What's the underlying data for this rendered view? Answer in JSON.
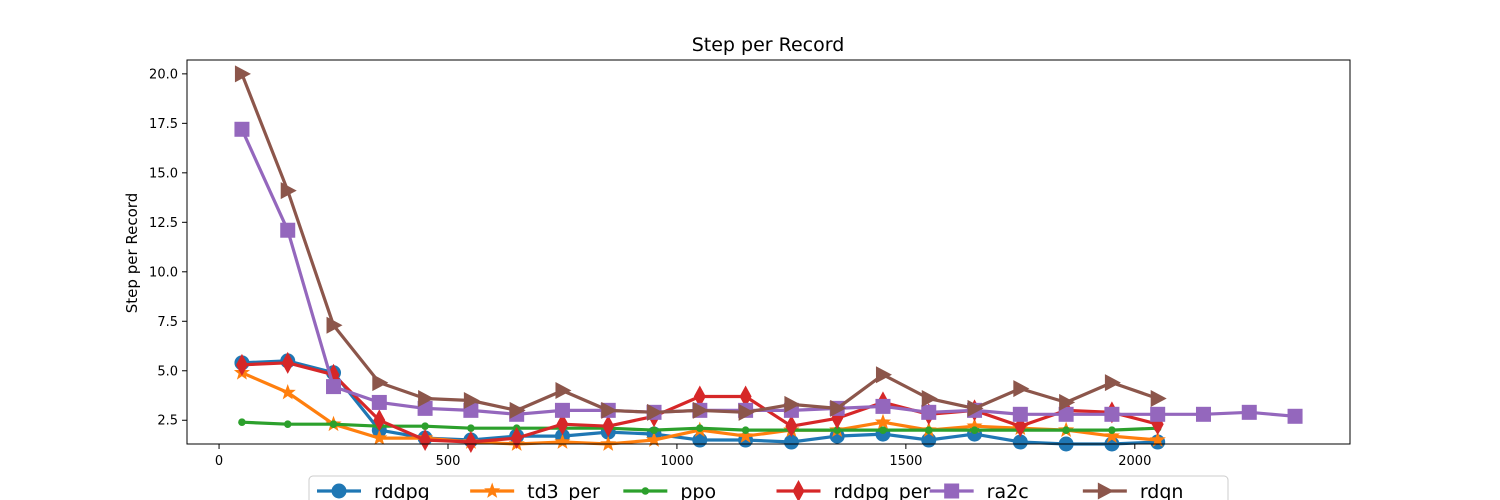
{
  "chart_data": {
    "type": "line",
    "title": "Step per Record",
    "xlabel": "",
    "ylabel": "Step per Record",
    "xlim": [
      -70,
      2470
    ],
    "ylim": [
      1.3,
      20.7
    ],
    "xticks": [
      0,
      500,
      1000,
      1500,
      2000
    ],
    "yticks": [
      2.5,
      5.0,
      7.5,
      10.0,
      12.5,
      15.0,
      17.5,
      20.0
    ],
    "ytick_labels": [
      "2.5",
      "5.0",
      "7.5",
      "10.0",
      "12.5",
      "15.0",
      "17.5",
      "20.0"
    ],
    "grid": false,
    "legend_position": "bottom-center",
    "series": [
      {
        "name": "rddpg",
        "color": "#1f77b4",
        "marker": "circle",
        "x": [
          50,
          150,
          250,
          350,
          450,
          550,
          650,
          750,
          850,
          950,
          1050,
          1150,
          1250,
          1350,
          1450,
          1550,
          1650,
          1750,
          1850,
          1950,
          2050
        ],
        "y": [
          5.4,
          5.5,
          4.9,
          2.0,
          1.6,
          1.5,
          1.7,
          1.7,
          1.9,
          1.8,
          1.5,
          1.5,
          1.4,
          1.7,
          1.8,
          1.5,
          1.8,
          1.4,
          1.3,
          1.3,
          1.4
        ]
      },
      {
        "name": "td3_per",
        "color": "#ff7f0e",
        "marker": "star",
        "x": [
          50,
          150,
          250,
          350,
          450,
          550,
          650,
          750,
          850,
          950,
          1050,
          1150,
          1250,
          1350,
          1450,
          1550,
          1650,
          1750,
          1850,
          1950,
          2050
        ],
        "y": [
          4.9,
          3.9,
          2.3,
          1.6,
          1.6,
          1.4,
          1.3,
          1.4,
          1.3,
          1.5,
          2.0,
          1.7,
          2.0,
          2.0,
          2.4,
          2.0,
          2.2,
          2.1,
          2.0,
          1.7,
          1.5
        ]
      },
      {
        "name": "ppo",
        "color": "#2ca02c",
        "marker": "dot",
        "x": [
          50,
          150,
          250,
          350,
          450,
          550,
          650,
          750,
          850,
          950,
          1050,
          1150,
          1250,
          1350,
          1450,
          1550,
          1650,
          1750,
          1850,
          1950,
          2050
        ],
        "y": [
          2.4,
          2.3,
          2.3,
          2.2,
          2.2,
          2.1,
          2.1,
          2.1,
          2.1,
          2.0,
          2.1,
          2.0,
          2.0,
          2.0,
          2.0,
          2.0,
          2.0,
          2.0,
          2.0,
          2.0,
          2.1
        ]
      },
      {
        "name": "rddpg_per",
        "color": "#d62728",
        "marker": "diamond",
        "x": [
          50,
          150,
          250,
          350,
          450,
          550,
          650,
          750,
          850,
          950,
          1050,
          1150,
          1250,
          1350,
          1450,
          1550,
          1650,
          1750,
          1850,
          1950,
          2050
        ],
        "y": [
          5.3,
          5.4,
          4.8,
          2.5,
          1.5,
          1.4,
          1.6,
          2.3,
          2.2,
          2.7,
          3.7,
          3.7,
          2.2,
          2.6,
          3.4,
          2.8,
          3.0,
          2.2,
          3.0,
          2.9,
          2.3
        ]
      },
      {
        "name": "ra2c",
        "color": "#9467bd",
        "marker": "square",
        "x": [
          50,
          150,
          250,
          350,
          450,
          550,
          650,
          750,
          850,
          950,
          1050,
          1150,
          1250,
          1350,
          1450,
          1550,
          1650,
          1750,
          1850,
          1950,
          2050,
          2150,
          2250,
          2350
        ],
        "y": [
          17.2,
          12.1,
          4.2,
          3.4,
          3.1,
          3.0,
          2.8,
          3.0,
          3.0,
          2.9,
          3.0,
          3.0,
          3.0,
          3.1,
          3.2,
          2.9,
          3.0,
          2.8,
          2.8,
          2.8,
          2.8,
          2.8,
          2.9,
          2.7
        ]
      },
      {
        "name": "rdqn",
        "color": "#8c564b",
        "marker": "triangle-right",
        "x": [
          50,
          150,
          250,
          350,
          450,
          550,
          650,
          750,
          850,
          950,
          1050,
          1150,
          1250,
          1350,
          1450,
          1550,
          1650,
          1750,
          1850,
          1950,
          2050
        ],
        "y": [
          20.0,
          14.1,
          7.3,
          4.4,
          3.6,
          3.5,
          3.0,
          4.0,
          3.0,
          2.9,
          3.0,
          2.9,
          3.3,
          3.1,
          4.8,
          3.6,
          3.1,
          4.1,
          3.4,
          4.4,
          3.6
        ]
      }
    ]
  }
}
